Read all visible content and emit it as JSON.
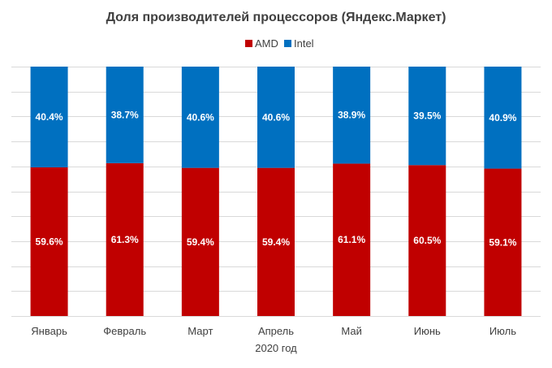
{
  "chart_data": {
    "type": "bar",
    "stacked": true,
    "title": "Доля производителей процессоров (Яндекс.Маркет)",
    "xlabel": "2020 год",
    "ylabel": "",
    "ylim": [
      0,
      100
    ],
    "grid": true,
    "legend_position": "top",
    "categories": [
      "Январь",
      "Февраль",
      "Март",
      "Апрель",
      "Май",
      "Июнь",
      "Июль"
    ],
    "series": [
      {
        "name": "AMD",
        "color": "#c00000",
        "values": [
          59.6,
          61.3,
          59.4,
          59.4,
          61.1,
          60.5,
          59.1
        ],
        "labels": [
          "59.6%",
          "61.3%",
          "59.4%",
          "59.4%",
          "61.1%",
          "60.5%",
          "59.1%"
        ]
      },
      {
        "name": "Intel",
        "color": "#0070c0",
        "values": [
          40.4,
          38.7,
          40.6,
          40.6,
          38.9,
          39.5,
          40.9
        ],
        "labels": [
          "40.4%",
          "38.7%",
          "40.6%",
          "40.6%",
          "38.9%",
          "39.5%",
          "40.9%"
        ]
      }
    ]
  }
}
